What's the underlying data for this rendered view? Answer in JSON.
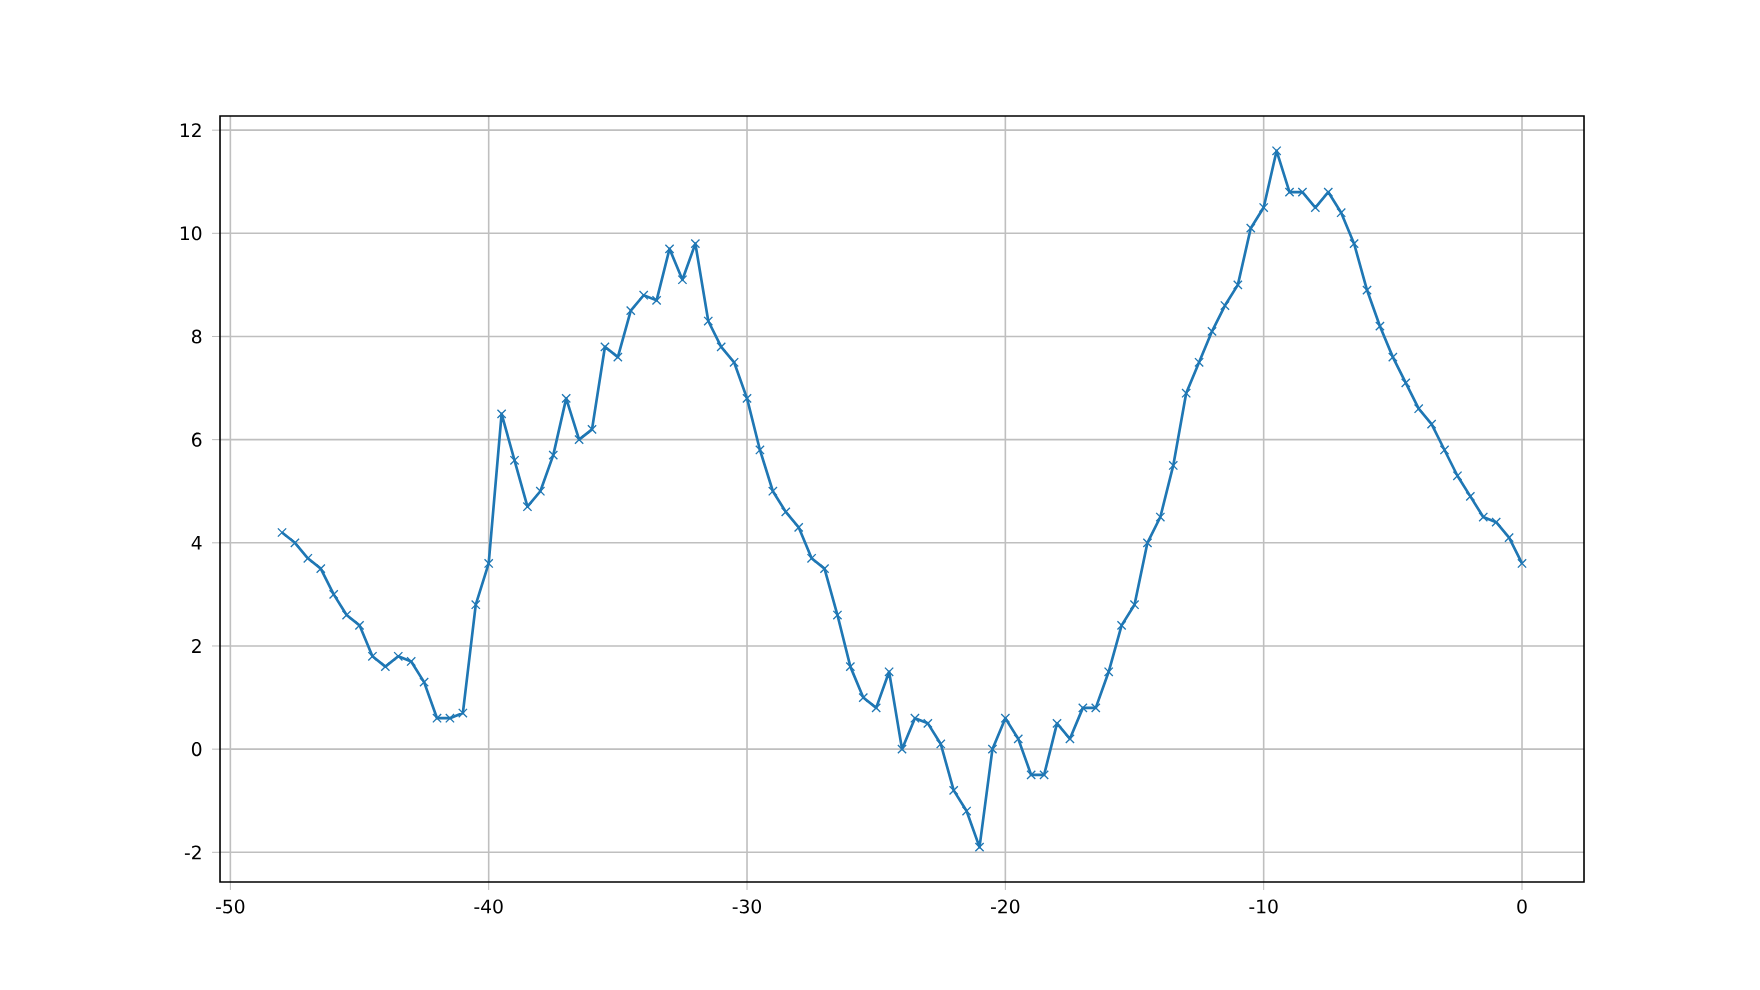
{
  "chart_data": {
    "type": "line",
    "x": [
      -48,
      -47.5,
      -47,
      -46.5,
      -46,
      -45.5,
      -45,
      -44.5,
      -44,
      -43.5,
      -43,
      -42.5,
      -42,
      -41.5,
      -41,
      -40.5,
      -40,
      -39.5,
      -39,
      -38.5,
      -38,
      -37.5,
      -37,
      -36.5,
      -36,
      -35.5,
      -35,
      -34.5,
      -34,
      -33.5,
      -33,
      -32.5,
      -32,
      -31.5,
      -31,
      -30.5,
      -30,
      -29.5,
      -29,
      -28.5,
      -28,
      -27.5,
      -27,
      -26.5,
      -26,
      -25.5,
      -25,
      -24.5,
      -24,
      -23.5,
      -23,
      -22.5,
      -22,
      -21.5,
      -21,
      -20.5,
      -20,
      -19.5,
      -19,
      -18.5,
      -18,
      -17.5,
      -17,
      -16.5,
      -16,
      -15.5,
      -15,
      -14.5,
      -14,
      -13.5,
      -13,
      -12.5,
      -12,
      -11.5,
      -11,
      -10.5,
      -10,
      -9.5,
      -9,
      -8.5,
      -8,
      -7.5,
      -7,
      -6.5,
      -6,
      -5.5,
      -5,
      -4.5,
      -4,
      -3.5,
      -3,
      -2.5,
      -2,
      -1.5,
      -1,
      -0.5,
      0
    ],
    "values": [
      4.2,
      4.0,
      3.7,
      3.5,
      3.0,
      2.6,
      2.4,
      1.8,
      1.6,
      1.8,
      1.7,
      1.3,
      0.6,
      0.6,
      0.7,
      2.8,
      3.6,
      6.5,
      5.6,
      4.7,
      5.0,
      5.7,
      6.8,
      6.0,
      6.2,
      7.8,
      7.6,
      8.5,
      8.8,
      8.7,
      9.7,
      9.1,
      9.8,
      8.3,
      7.8,
      7.5,
      6.8,
      5.8,
      5.0,
      4.6,
      4.3,
      3.7,
      3.5,
      2.6,
      1.6,
      1.0,
      0.8,
      1.5,
      0.0,
      0.6,
      0.5,
      0.1,
      -0.8,
      -1.2,
      -1.9,
      0.0,
      0.6,
      0.2,
      -0.5,
      -0.5,
      0.5,
      0.2,
      0.8,
      0.8,
      1.5,
      2.4,
      2.8,
      4.0,
      4.5,
      5.5,
      6.9,
      7.5,
      8.1,
      8.6,
      9.0,
      10.1,
      10.5,
      11.6,
      10.8,
      10.8,
      10.5,
      10.8,
      10.4,
      9.8,
      8.9,
      8.2,
      7.6,
      7.1,
      6.6,
      6.3,
      5.8,
      5.3,
      4.9,
      4.5,
      4.4,
      4.1,
      3.6
    ],
    "color": "#1f77b4",
    "xlim": [
      -50.4,
      2.4
    ],
    "ylim": [
      -2.575,
      12.275
    ],
    "xticks": [
      -50,
      -40,
      -30,
      -20,
      -10,
      0
    ],
    "yticks": [
      -2,
      0,
      2,
      4,
      6,
      8,
      10,
      12
    ],
    "grid": true,
    "marker": "cross"
  }
}
